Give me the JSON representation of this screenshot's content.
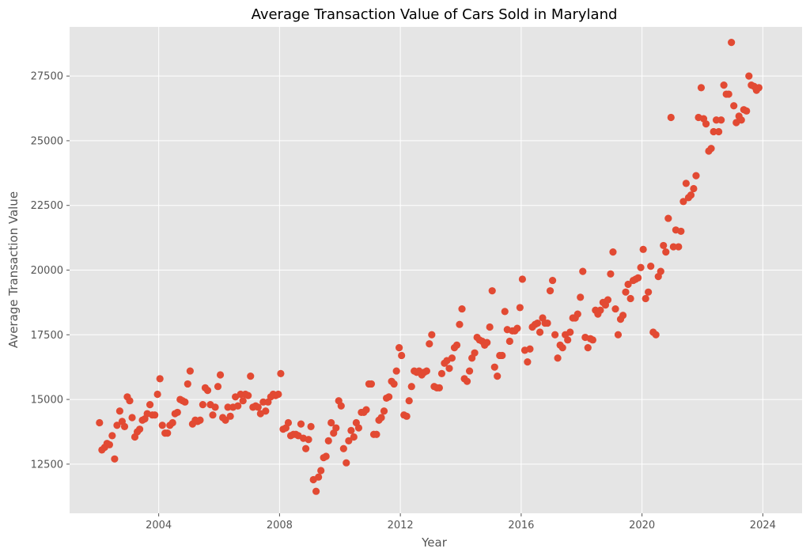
{
  "chart_data": {
    "type": "scatter",
    "title": "Average Transaction Value of Cars Sold in Maryland",
    "xlabel": "Year",
    "ylabel": "Average Transaction Value",
    "xlim": [
      2001.05,
      2025.3
    ],
    "ylim": [
      10600,
      29400
    ],
    "xticks": [
      2004,
      2008,
      2012,
      2016,
      2020,
      2024
    ],
    "yticks": [
      12500,
      15000,
      17500,
      20000,
      22500,
      25000,
      27500
    ],
    "grid": true,
    "style": "ggplot",
    "colors": {
      "background": "#e5e5e5",
      "grid": "#ffffff",
      "marker": "#e24a33"
    },
    "x": [
      2002.04,
      2002.12,
      2002.21,
      2002.29,
      2002.37,
      2002.46,
      2002.54,
      2002.62,
      2002.71,
      2002.79,
      2002.87,
      2002.96,
      2003.04,
      2003.12,
      2003.21,
      2003.29,
      2003.37,
      2003.46,
      2003.54,
      2003.62,
      2003.71,
      2003.79,
      2003.87,
      2003.96,
      2004.04,
      2004.12,
      2004.21,
      2004.29,
      2004.37,
      2004.46,
      2004.54,
      2004.62,
      2004.71,
      2004.79,
      2004.87,
      2004.96,
      2005.04,
      2005.12,
      2005.21,
      2005.29,
      2005.37,
      2005.46,
      2005.54,
      2005.62,
      2005.71,
      2005.79,
      2005.87,
      2005.96,
      2006.04,
      2006.12,
      2006.21,
      2006.29,
      2006.37,
      2006.46,
      2006.54,
      2006.62,
      2006.71,
      2006.79,
      2006.87,
      2006.96,
      2007.04,
      2007.12,
      2007.21,
      2007.29,
      2007.37,
      2007.46,
      2007.54,
      2007.62,
      2007.71,
      2007.79,
      2007.87,
      2007.96,
      2008.04,
      2008.12,
      2008.21,
      2008.29,
      2008.37,
      2008.46,
      2008.54,
      2008.62,
      2008.71,
      2008.79,
      2008.87,
      2008.96,
      2009.04,
      2009.12,
      2009.21,
      2009.29,
      2009.37,
      2009.46,
      2009.54,
      2009.62,
      2009.71,
      2009.79,
      2009.87,
      2009.96,
      2010.04,
      2010.12,
      2010.21,
      2010.29,
      2010.37,
      2010.46,
      2010.54,
      2010.62,
      2010.71,
      2010.79,
      2010.87,
      2010.96,
      2011.04,
      2011.12,
      2011.21,
      2011.29,
      2011.37,
      2011.46,
      2011.54,
      2011.62,
      2011.71,
      2011.79,
      2011.87,
      2011.96,
      2012.04,
      2012.12,
      2012.21,
      2012.29,
      2012.37,
      2012.46,
      2012.54,
      2012.62,
      2012.71,
      2012.79,
      2012.87,
      2012.96,
      2013.04,
      2013.12,
      2013.21,
      2013.29,
      2013.37,
      2013.46,
      2013.54,
      2013.62,
      2013.71,
      2013.79,
      2013.87,
      2013.96,
      2014.04,
      2014.12,
      2014.21,
      2014.29,
      2014.37,
      2014.46,
      2014.54,
      2014.62,
      2014.71,
      2014.79,
      2014.87,
      2014.96,
      2015.04,
      2015.12,
      2015.21,
      2015.29,
      2015.37,
      2015.46,
      2015.54,
      2015.62,
      2015.71,
      2015.79,
      2015.87,
      2015.96,
      2016.04,
      2016.12,
      2016.21,
      2016.29,
      2016.37,
      2016.46,
      2016.54,
      2016.62,
      2016.71,
      2016.79,
      2016.87,
      2016.96,
      2017.04,
      2017.12,
      2017.21,
      2017.29,
      2017.37,
      2017.46,
      2017.54,
      2017.62,
      2017.71,
      2017.79,
      2017.87,
      2017.96,
      2018.04,
      2018.12,
      2018.21,
      2018.29,
      2018.37,
      2018.46,
      2018.54,
      2018.62,
      2018.71,
      2018.79,
      2018.87,
      2018.96,
      2019.04,
      2019.12,
      2019.21,
      2019.29,
      2019.37,
      2019.46,
      2019.54,
      2019.62,
      2019.71,
      2019.79,
      2019.87,
      2019.96,
      2020.04,
      2020.12,
      2020.21,
      2020.29,
      2020.37,
      2020.46,
      2020.54,
      2020.62,
      2020.71,
      2020.79,
      2020.87,
      2020.96,
      2021.04,
      2021.12,
      2021.21,
      2021.29,
      2021.37,
      2021.46,
      2021.54,
      2021.62,
      2021.71,
      2021.79,
      2021.87,
      2021.96,
      2022.04,
      2022.12,
      2022.21,
      2022.29,
      2022.37,
      2022.46,
      2022.54,
      2022.62,
      2022.71,
      2022.79,
      2022.87,
      2022.96,
      2023.04,
      2023.12,
      2023.21,
      2023.29,
      2023.37,
      2023.46,
      2023.54,
      2023.62,
      2023.71,
      2023.79,
      2023.87
    ],
    "y": [
      14100,
      13050,
      13150,
      13300,
      13250,
      13600,
      12700,
      14000,
      14550,
      14150,
      13950,
      15100,
      14950,
      14300,
      13550,
      13750,
      13850,
      14200,
      14250,
      14450,
      14800,
      14400,
      14400,
      15200,
      15800,
      14000,
      13700,
      13700,
      14000,
      14100,
      14450,
      14500,
      15000,
      14950,
      14900,
      15600,
      16100,
      14050,
      14200,
      14150,
      14200,
      14800,
      15450,
      15350,
      14800,
      14400,
      14700,
      15500,
      15950,
      14300,
      14200,
      14700,
      14350,
      14700,
      15100,
      14750,
      15200,
      14950,
      15200,
      15150,
      15900,
      14700,
      14750,
      14700,
      14450,
      14900,
      14550,
      14900,
      15100,
      15200,
      15150,
      15200,
      16000,
      13850,
      13900,
      14100,
      13600,
      13650,
      13650,
      13600,
      14050,
      13500,
      13100,
      13450,
      13950,
      11900,
      11450,
      12000,
      12250,
      12750,
      12800,
      13400,
      14100,
      13700,
      13900,
      14950,
      14750,
      13100,
      12550,
      13400,
      13800,
      13550,
      14100,
      13900,
      14500,
      14500,
      14600,
      15600,
      15600,
      13650,
      13650,
      14200,
      14300,
      14550,
      15050,
      15100,
      15700,
      15600,
      16100,
      17000,
      16700,
      14400,
      14350,
      14950,
      15500,
      16100,
      16050,
      16100,
      15950,
      16050,
      16100,
      17150,
      17500,
      15500,
      15450,
      15450,
      16000,
      16400,
      16500,
      16200,
      16600,
      17000,
      17100,
      17900,
      18500,
      15800,
      15700,
      16100,
      16600,
      16800,
      17400,
      17300,
      17250,
      17100,
      17200,
      17800,
      19200,
      16250,
      15900,
      16700,
      16700,
      18400,
      17700,
      17250,
      17650,
      17650,
      17750,
      18550,
      19650,
      16900,
      16450,
      16950,
      17800,
      17900,
      17950,
      17600,
      18150,
      17950,
      17950,
      19200,
      19600,
      17500,
      16600,
      17100,
      17000,
      17500,
      17300,
      17600,
      18150,
      18150,
      18300,
      18950,
      19950,
      17400,
      17000,
      17350,
      17300,
      18450,
      18300,
      18450,
      18750,
      18650,
      18850,
      19850,
      20700,
      18500,
      17500,
      18100,
      18250,
      19150,
      19450,
      18900,
      19600,
      19650,
      19700,
      20100,
      20800,
      18900,
      19150,
      20150,
      17600,
      17500,
      19750,
      19950,
      20950,
      20700,
      22000,
      25900,
      20900,
      21550,
      20900,
      21500,
      22650,
      23350,
      22800,
      22900,
      23150,
      23650,
      25900,
      27050,
      25850,
      25650,
      24600,
      24700,
      25350,
      25800,
      25350,
      25800,
      27150,
      26800,
      26800,
      28800,
      26350,
      25700,
      25950,
      25800,
      26200,
      26150,
      27500,
      27150,
      27100,
      26950,
      27050
    ]
  }
}
